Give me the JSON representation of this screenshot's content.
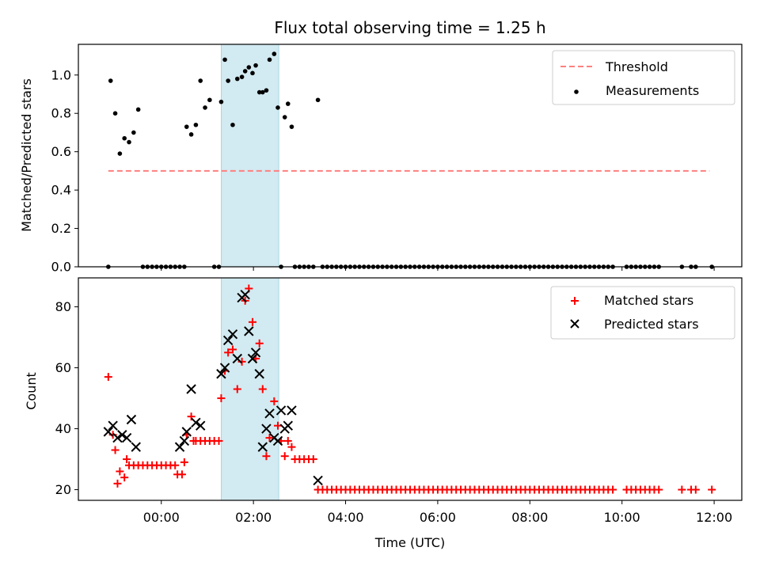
{
  "chart_data": [
    {
      "type": "scatter",
      "title": "Flux total observing time = 1.25 h",
      "ylabel": "Matched/Predicted stars",
      "xlabel": "",
      "x_unit": "hours UTC (negative = before 00:00)",
      "xlim": [
        -1.8,
        12.6
      ],
      "ylim": [
        0,
        1.16
      ],
      "yticks": [
        "0.0",
        "0.2",
        "0.4",
        "0.6",
        "0.8",
        "1.0"
      ],
      "highlight_span": [
        1.3,
        2.55
      ],
      "highlight_color": "#d2eaf1",
      "legend_position": "top-right",
      "series": [
        {
          "name": "Threshold",
          "style": "dashed-line",
          "color": "#ff7f7f",
          "x": [
            -1.15,
            11.9
          ],
          "y": [
            0.5,
            0.5
          ]
        },
        {
          "name": "Measurements",
          "style": "dot",
          "color": "#000000",
          "x": [
            -1.15,
            -1.1,
            -1.0,
            -0.9,
            -0.8,
            -0.7,
            -0.6,
            -0.5,
            -0.4,
            -0.3,
            -0.2,
            -0.1,
            0.0,
            0.1,
            0.2,
            0.3,
            0.4,
            0.5,
            0.55,
            0.65,
            0.75,
            0.85,
            0.95,
            1.05,
            1.15,
            1.25,
            1.3,
            1.38,
            1.45,
            1.55,
            1.65,
            1.75,
            1.82,
            1.9,
            1.98,
            2.05,
            2.13,
            2.2,
            2.28,
            2.35,
            2.45,
            2.53,
            2.6,
            2.68,
            2.75,
            2.83,
            2.9,
            3.0,
            3.1,
            3.2,
            3.3,
            3.4,
            3.5,
            3.6,
            3.7,
            3.8,
            3.9,
            4.0,
            4.1,
            4.2,
            4.3,
            4.4,
            4.5,
            4.6,
            4.7,
            4.8,
            4.9,
            5.0,
            5.1,
            5.2,
            5.3,
            5.4,
            5.5,
            5.6,
            5.7,
            5.8,
            5.9,
            6.0,
            6.1,
            6.2,
            6.3,
            6.4,
            6.5,
            6.6,
            6.7,
            6.8,
            6.9,
            7.0,
            7.1,
            7.2,
            7.3,
            7.4,
            7.5,
            7.6,
            7.7,
            7.8,
            7.9,
            8.0,
            8.1,
            8.2,
            8.3,
            8.4,
            8.5,
            8.6,
            8.7,
            8.8,
            8.9,
            9.0,
            9.1,
            9.2,
            9.3,
            9.4,
            9.5,
            9.6,
            9.7,
            9.8,
            10.1,
            10.2,
            10.3,
            10.4,
            10.5,
            10.6,
            10.7,
            10.8,
            11.3,
            11.5,
            11.6,
            11.95
          ],
          "y": [
            0.0,
            0.97,
            0.8,
            0.59,
            0.67,
            0.65,
            0.7,
            0.82,
            0.0,
            0.0,
            0.0,
            0.0,
            0.0,
            0.0,
            0.0,
            0.0,
            0.0,
            0.0,
            0.73,
            0.69,
            0.74,
            0.97,
            0.83,
            0.87,
            0.0,
            0.0,
            0.86,
            1.08,
            0.97,
            0.74,
            0.98,
            0.99,
            1.02,
            1.04,
            1.01,
            1.05,
            0.91,
            0.91,
            0.92,
            1.08,
            1.11,
            0.83,
            0.0,
            0.78,
            0.85,
            0.73,
            0.0,
            0.0,
            0.0,
            0.0,
            0.0,
            0.87,
            0.0,
            0.0,
            0.0,
            0.0,
            0.0,
            0.0,
            0.0,
            0.0,
            0.0,
            0.0,
            0.0,
            0.0,
            0.0,
            0.0,
            0.0,
            0.0,
            0.0,
            0.0,
            0.0,
            0.0,
            0.0,
            0.0,
            0.0,
            0.0,
            0.0,
            0.0,
            0.0,
            0.0,
            0.0,
            0.0,
            0.0,
            0.0,
            0.0,
            0.0,
            0.0,
            0.0,
            0.0,
            0.0,
            0.0,
            0.0,
            0.0,
            0.0,
            0.0,
            0.0,
            0.0,
            0.0,
            0.0,
            0.0,
            0.0,
            0.0,
            0.0,
            0.0,
            0.0,
            0.0,
            0.0,
            0.0,
            0.0,
            0.0,
            0.0,
            0.0,
            0.0,
            0.0,
            0.0,
            0.0,
            0.0,
            0.0,
            0.0,
            0.0,
            0.0,
            0.0,
            0.0,
            0.0,
            0.0,
            0.0,
            0.0,
            0.0
          ]
        }
      ]
    },
    {
      "type": "scatter",
      "title": "",
      "ylabel": "Count",
      "xlabel": "Time (UTC)",
      "x_unit": "hours UTC (negative = before 00:00)",
      "xlim": [
        -1.8,
        12.6
      ],
      "ylim": [
        16.5,
        89.5
      ],
      "yticks": [
        "20",
        "40",
        "60",
        "80"
      ],
      "xticks": [
        "00:00",
        "02:00",
        "04:00",
        "06:00",
        "08:00",
        "10:00",
        "12:00"
      ],
      "highlight_span": [
        1.3,
        2.55
      ],
      "highlight_color": "#d2eaf1",
      "legend_position": "top-right",
      "series": [
        {
          "name": "Matched stars",
          "style": "plus",
          "color": "#ff0000",
          "x": [
            -1.15,
            -1.05,
            -1.0,
            -0.95,
            -0.9,
            -0.8,
            -0.75,
            -0.7,
            -0.6,
            -0.5,
            -0.4,
            -0.3,
            -0.2,
            -0.1,
            0.0,
            0.1,
            0.2,
            0.3,
            0.35,
            0.45,
            0.5,
            0.55,
            0.65,
            0.7,
            0.75,
            0.85,
            0.95,
            1.05,
            1.15,
            1.25,
            1.3,
            1.38,
            1.45,
            1.55,
            1.65,
            1.75,
            1.82,
            1.9,
            1.98,
            2.05,
            2.13,
            2.2,
            2.28,
            2.35,
            2.45,
            2.53,
            2.6,
            2.68,
            2.75,
            2.83,
            2.9,
            3.0,
            3.1,
            3.2,
            3.3,
            3.4,
            3.5,
            3.6,
            3.7,
            3.8,
            3.9,
            4.0,
            4.1,
            4.2,
            4.3,
            4.4,
            4.5,
            4.6,
            4.7,
            4.8,
            4.9,
            5.0,
            5.1,
            5.2,
            5.3,
            5.4,
            5.5,
            5.6,
            5.7,
            5.8,
            5.9,
            6.0,
            6.1,
            6.2,
            6.3,
            6.4,
            6.5,
            6.6,
            6.7,
            6.8,
            6.9,
            7.0,
            7.1,
            7.2,
            7.3,
            7.4,
            7.5,
            7.6,
            7.7,
            7.8,
            7.9,
            8.0,
            8.1,
            8.2,
            8.3,
            8.4,
            8.5,
            8.6,
            8.7,
            8.8,
            8.9,
            9.0,
            9.1,
            9.2,
            9.3,
            9.4,
            9.5,
            9.6,
            9.7,
            9.8,
            10.1,
            10.2,
            10.3,
            10.4,
            10.5,
            10.6,
            10.7,
            10.8,
            11.3,
            11.5,
            11.6,
            11.95
          ],
          "y": [
            57,
            38,
            33,
            22,
            26,
            24,
            30,
            28,
            28,
            28,
            28,
            28,
            28,
            28,
            28,
            28,
            28,
            28,
            25,
            25,
            29,
            38,
            44,
            36,
            36,
            36,
            36,
            36,
            36,
            36,
            50,
            59,
            65,
            66,
            53,
            62,
            82,
            86,
            75,
            63,
            68,
            53,
            31,
            37,
            49,
            41,
            36,
            31,
            36,
            34,
            30,
            30,
            30,
            30,
            30,
            20,
            20,
            20,
            20,
            20,
            20,
            20,
            20,
            20,
            20,
            20,
            20,
            20,
            20,
            20,
            20,
            20,
            20,
            20,
            20,
            20,
            20,
            20,
            20,
            20,
            20,
            20,
            20,
            20,
            20,
            20,
            20,
            20,
            20,
            20,
            20,
            20,
            20,
            20,
            20,
            20,
            20,
            20,
            20,
            20,
            20,
            20,
            20,
            20,
            20,
            20,
            20,
            20,
            20,
            20,
            20,
            20,
            20,
            20,
            20,
            20,
            20,
            20,
            20,
            20,
            20,
            20,
            20,
            20,
            20,
            20,
            20,
            20,
            20,
            20,
            20,
            20
          ]
        },
        {
          "name": "Predicted stars",
          "style": "x",
          "color": "#000000",
          "x": [
            -1.15,
            -1.05,
            -0.95,
            -0.85,
            -0.75,
            -0.65,
            -0.55,
            0.4,
            0.5,
            0.55,
            0.65,
            0.75,
            0.85,
            1.3,
            1.38,
            1.45,
            1.55,
            1.65,
            1.75,
            1.82,
            1.9,
            1.98,
            2.05,
            2.13,
            2.2,
            2.28,
            2.35,
            2.45,
            2.53,
            2.6,
            2.68,
            2.75,
            2.83,
            3.4
          ],
          "y": [
            39,
            41,
            37,
            38,
            37,
            43,
            34,
            34,
            36,
            39,
            53,
            42,
            41,
            58,
            60,
            69,
            71,
            63,
            83,
            84,
            72,
            63,
            65,
            58,
            34,
            40,
            45,
            37,
            36,
            46,
            40,
            41,
            46,
            23
          ]
        }
      ]
    }
  ]
}
